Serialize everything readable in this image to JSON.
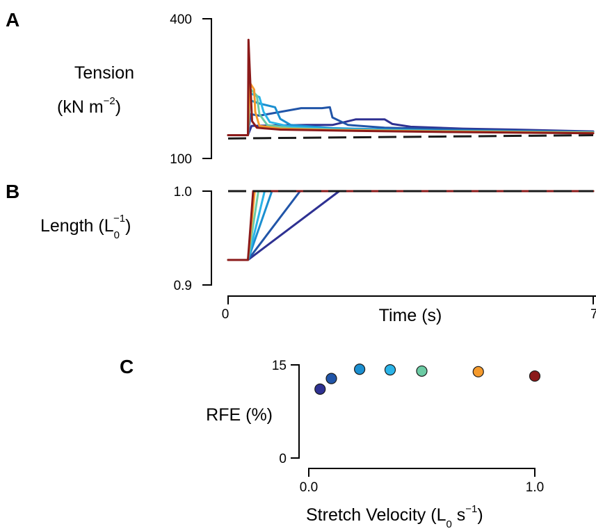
{
  "chart_data": [
    {
      "panel": "A",
      "type": "line",
      "ylabel_line1": "Tension",
      "ylabel_line2": "(kN m",
      "ylabel_sup": "−2",
      "ylabel_close": ")",
      "ylim": [
        100,
        400
      ],
      "xlim": [
        0,
        7
      ],
      "yticks": [
        "400",
        "100"
      ],
      "reference": {
        "style": "dashed",
        "color": "#1a1a1a",
        "points": [
          [
            0.0,
            143
          ],
          [
            7.0,
            150
          ]
        ]
      },
      "series": [
        {
          "color": "#2e3192",
          "points": [
            [
              0,
              150
            ],
            [
              0.38,
              150
            ],
            [
              0.45,
              170
            ],
            [
              1.5,
              172
            ],
            [
              2.0,
              172
            ],
            [
              2.45,
              184
            ],
            [
              3.0,
              184
            ],
            [
              3.15,
              174
            ],
            [
              3.5,
              168
            ],
            [
              4.5,
              164
            ],
            [
              5.5,
              162
            ],
            [
              7,
              158
            ]
          ]
        },
        {
          "color": "#2155a8",
          "points": [
            [
              0,
              150
            ],
            [
              0.38,
              150
            ],
            [
              0.43,
              195
            ],
            [
              0.6,
              192
            ],
            [
              1.0,
              200
            ],
            [
              1.4,
              208
            ],
            [
              1.8,
              208
            ],
            [
              1.95,
              210
            ],
            [
              2.0,
              188
            ],
            [
              2.3,
              172
            ],
            [
              3,
              166
            ],
            [
              4.5,
              162
            ],
            [
              7,
              157
            ]
          ]
        },
        {
          "color": "#1b8fd0",
          "points": [
            [
              0,
              150
            ],
            [
              0.38,
              150
            ],
            [
              0.42,
              225
            ],
            [
              0.6,
              218
            ],
            [
              0.9,
              210
            ],
            [
              1.0,
              185
            ],
            [
              1.2,
              172
            ],
            [
              2,
              165
            ],
            [
              4,
              160
            ],
            [
              7,
              156
            ]
          ]
        },
        {
          "color": "#2bb4e8",
          "points": [
            [
              0,
              150
            ],
            [
              0.38,
              150
            ],
            [
              0.42,
              240
            ],
            [
              0.6,
              232
            ],
            [
              0.68,
              200
            ],
            [
              0.8,
              178
            ],
            [
              1.2,
              168
            ],
            [
              2,
              163
            ],
            [
              4,
              159
            ],
            [
              7,
              156
            ]
          ]
        },
        {
          "color": "#6ccba4",
          "points": [
            [
              0,
              150
            ],
            [
              0.38,
              150
            ],
            [
              0.42,
              250
            ],
            [
              0.55,
              235
            ],
            [
              0.6,
              195
            ],
            [
              0.75,
              172
            ],
            [
              1.2,
              165
            ],
            [
              2,
              162
            ],
            [
              4,
              159
            ],
            [
              7,
              156
            ]
          ]
        },
        {
          "color": "#f59a2c",
          "points": [
            [
              0,
              150
            ],
            [
              0.38,
              150
            ],
            [
              0.42,
              262
            ],
            [
              0.5,
              248
            ],
            [
              0.52,
              200
            ],
            [
              0.6,
              170
            ],
            [
              1,
              164
            ],
            [
              2,
              161
            ],
            [
              4,
              158
            ],
            [
              7,
              155
            ]
          ]
        },
        {
          "color": "#8b1a1a",
          "points": [
            [
              0,
              150
            ],
            [
              0.38,
              150
            ],
            [
              0.39,
              355
            ],
            [
              0.43,
              250
            ],
            [
              0.46,
              180
            ],
            [
              0.55,
              166
            ],
            [
              1,
              162
            ],
            [
              2,
              160
            ],
            [
              4,
              157
            ],
            [
              7,
              154
            ]
          ]
        }
      ]
    },
    {
      "panel": "B",
      "type": "line",
      "ylabel_main": "Length (L",
      "ylabel_sub": "0",
      "ylabel_sup": "−1",
      "ylabel_close": ")",
      "ylim": [
        0.9,
        1.0
      ],
      "xlim": [
        0,
        7
      ],
      "yticks": [
        "1.0",
        "0.9"
      ],
      "xticks": [
        "0",
        "7"
      ],
      "xlabel": "Time (s)",
      "reference": {
        "style": "dashed",
        "color": "#1a1a1a",
        "value": 1.0
      },
      "series": [
        {
          "color": "#2e3192",
          "points": [
            [
              0,
              0.9
            ],
            [
              0.38,
              0.9
            ],
            [
              2.13,
              1.0
            ],
            [
              7,
              1.0
            ]
          ]
        },
        {
          "color": "#2155a8",
          "points": [
            [
              0,
              0.9
            ],
            [
              0.38,
              0.9
            ],
            [
              1.38,
              1.0
            ],
            [
              7,
              1.0
            ]
          ]
        },
        {
          "color": "#1b8fd0",
          "points": [
            [
              0,
              0.9
            ],
            [
              0.38,
              0.9
            ],
            [
              0.84,
              1.0
            ],
            [
              7,
              1.0
            ]
          ]
        },
        {
          "color": "#2bb4e8",
          "points": [
            [
              0,
              0.9
            ],
            [
              0.38,
              0.9
            ],
            [
              0.7,
              1.0
            ],
            [
              7,
              1.0
            ]
          ]
        },
        {
          "color": "#6ccba4",
          "points": [
            [
              0,
              0.9
            ],
            [
              0.38,
              0.9
            ],
            [
              0.58,
              1.0
            ],
            [
              7,
              1.0
            ]
          ]
        },
        {
          "color": "#f59a2c",
          "points": [
            [
              0,
              0.9
            ],
            [
              0.38,
              0.9
            ],
            [
              0.51,
              1.0
            ],
            [
              7,
              1.0
            ]
          ]
        },
        {
          "color": "#8b1a1a",
          "points": [
            [
              0,
              0.9
            ],
            [
              0.38,
              0.9
            ],
            [
              0.48,
              1.0
            ],
            [
              7,
              1.0
            ]
          ]
        }
      ]
    },
    {
      "panel": "C",
      "type": "scatter",
      "ylabel": "RFE (%)",
      "xlabel_main": "Stretch Velocity (L",
      "xlabel_sub": "0",
      "xlabel_mid": " s",
      "xlabel_sup": "−1",
      "xlabel_close": ")",
      "ylim": [
        0,
        15
      ],
      "xlim": [
        0,
        1.0
      ],
      "yticks": [
        "15",
        "0"
      ],
      "xticks": [
        "0.0",
        "1.0"
      ],
      "points": [
        {
          "x": 0.05,
          "y": 11.1,
          "color": "#2e3192"
        },
        {
          "x": 0.1,
          "y": 12.8,
          "color": "#2155a8"
        },
        {
          "x": 0.225,
          "y": 14.3,
          "color": "#1b8fd0"
        },
        {
          "x": 0.36,
          "y": 14.2,
          "color": "#2bb4e8"
        },
        {
          "x": 0.5,
          "y": 14.0,
          "color": "#6ccba4"
        },
        {
          "x": 0.75,
          "y": 13.9,
          "color": "#f59a2c"
        },
        {
          "x": 1.0,
          "y": 13.2,
          "color": "#8b1a1a"
        }
      ]
    }
  ]
}
